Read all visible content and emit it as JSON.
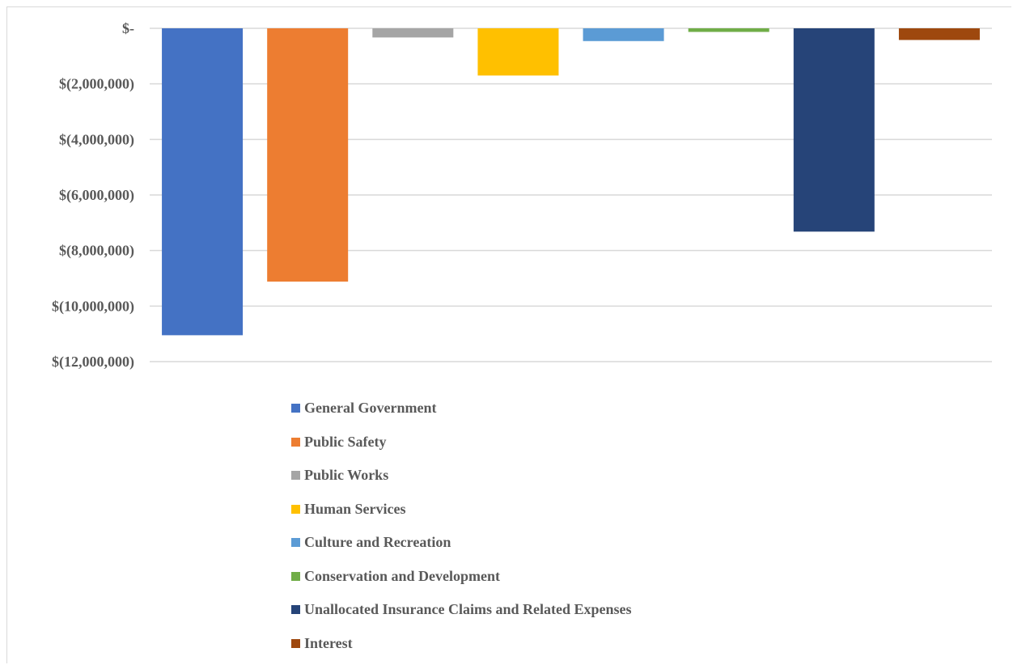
{
  "chart_data": {
    "type": "bar",
    "title": "",
    "xlabel": "",
    "ylabel": "",
    "ylim": [
      -12000000,
      0
    ],
    "yticks": [
      0,
      -2000000,
      -4000000,
      -6000000,
      -8000000,
      -10000000,
      -12000000
    ],
    "ytick_labels": [
      "$-",
      "$(2,000,000)",
      "$(4,000,000)",
      "$(6,000,000)",
      "$(8,000,000)",
      "$(10,000,000)",
      "$(12,000,000)"
    ],
    "grid": true,
    "legend_position": "bottom",
    "series": [
      {
        "name": "General Government",
        "value": -11050000,
        "color": "#4472c4"
      },
      {
        "name": "Public Safety",
        "value": -9120000,
        "color": "#ed7d31"
      },
      {
        "name": "Public Works",
        "value": -330000,
        "color": "#a5a5a5"
      },
      {
        "name": "Human Services",
        "value": -1700000,
        "color": "#ffc000"
      },
      {
        "name": "Culture and Recreation",
        "value": -460000,
        "color": "#5b9bd5"
      },
      {
        "name": "Conservation and Development",
        "value": -130000,
        "color": "#70ad47"
      },
      {
        "name": "Unallocated Insurance Claims and Related Expenses",
        "value": -7320000,
        "color": "#264478"
      },
      {
        "name": "Interest",
        "value": -420000,
        "color": "#9e480e"
      }
    ]
  }
}
